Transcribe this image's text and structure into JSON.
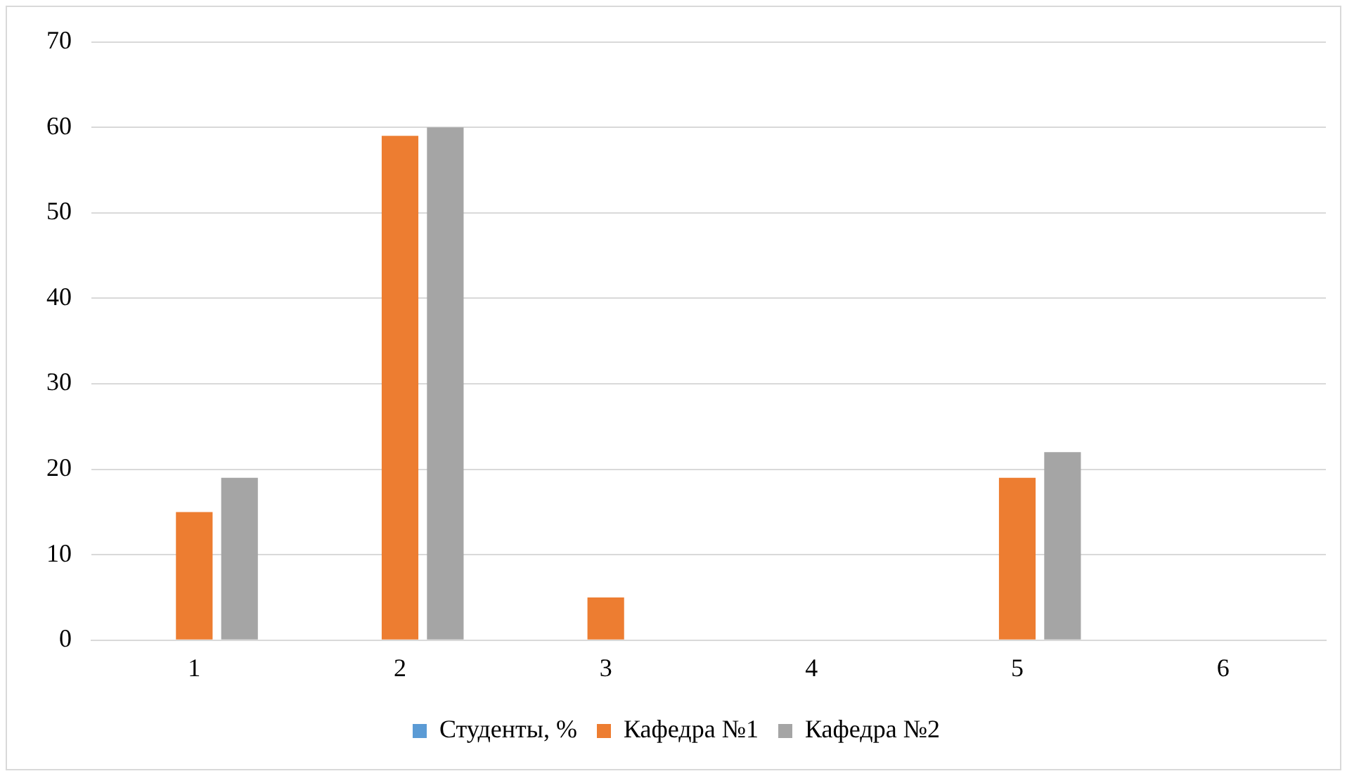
{
  "chart_data": {
    "type": "bar",
    "categories": [
      "1",
      "2",
      "3",
      "4",
      "5",
      "6"
    ],
    "series": [
      {
        "name": "Студенты, %",
        "color": "#5b9bd5",
        "values": [
          0,
          0,
          0,
          0,
          0,
          0
        ]
      },
      {
        "name": "Кафедра №1",
        "color": "#ed7d31",
        "values": [
          15,
          59,
          5,
          0,
          19,
          0
        ]
      },
      {
        "name": "Кафедра №2",
        "color": "#a5a5a5",
        "values": [
          19,
          60,
          0,
          0,
          22,
          0
        ]
      }
    ],
    "ylim": [
      0,
      70
    ],
    "yticks": [
      0,
      10,
      20,
      30,
      40,
      50,
      60,
      70
    ],
    "grid": "y",
    "legend": "bottom"
  }
}
